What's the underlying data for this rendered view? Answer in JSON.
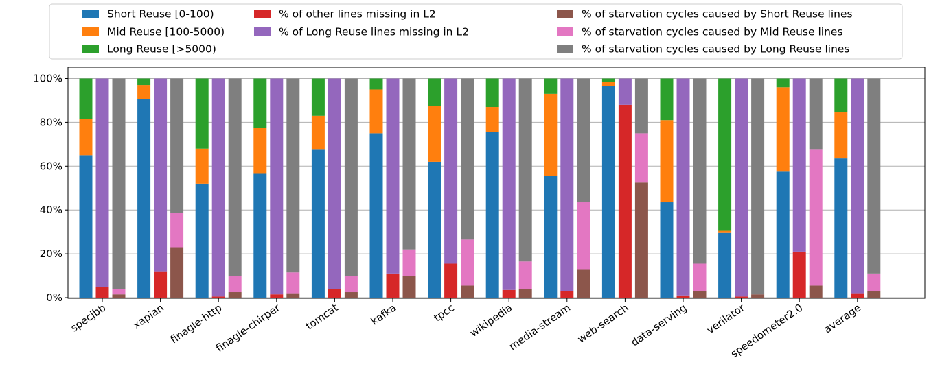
{
  "chart_data": {
    "type": "bar",
    "layout": "grouped-stacked",
    "categories": [
      "specjbb",
      "xapian",
      "finagle-http",
      "finagle-chirper",
      "tomcat",
      "kafka",
      "tpcc",
      "wikipedia",
      "media-stream",
      "web-search",
      "data-serving",
      "verilator",
      "speedometer2.0",
      "average"
    ],
    "ylim": [
      0,
      100
    ],
    "yticks": [
      0,
      20,
      40,
      60,
      80,
      100
    ],
    "ytick_labels": [
      "0%",
      "20%",
      "40%",
      "60%",
      "80%",
      "100%"
    ],
    "grid": true,
    "legend_position": "top",
    "groups": [
      {
        "stack": "reuse-distribution",
        "series": [
          {
            "name": "Short Reuse [0-100)",
            "color": "#1f77b4",
            "values": [
              65,
              90.5,
              52,
              56.5,
              67.5,
              75,
              62,
              75.5,
              55.5,
              96.5,
              43.5,
              29.5,
              57.5,
              63.5
            ]
          },
          {
            "name": "Mid Reuse [100-5000)",
            "color": "#ff7f0e",
            "values": [
              16.5,
              6.5,
              16,
              21,
              15.5,
              20,
              25.5,
              11.5,
              37.5,
              2,
              37.5,
              1,
              38.5,
              21
            ]
          },
          {
            "name": "Long Reuse [>5000)",
            "color": "#2ca02c",
            "values": [
              18.5,
              3,
              32,
              22.5,
              17,
              5,
              12.5,
              13,
              7,
              1.5,
              19,
              69.5,
              4,
              15.5
            ]
          }
        ]
      },
      {
        "stack": "l2-misses",
        "series": [
          {
            "name": "% of other lines missing in L2",
            "color": "#d62728",
            "values": [
              5,
              12,
              0.5,
              1.5,
              4,
              11,
              15.5,
              3.5,
              3,
              88,
              1,
              0.5,
              21,
              2
            ]
          },
          {
            "name": "% of Long Reuse lines missing in L2",
            "color": "#9467bd",
            "values": [
              95,
              88,
              99.5,
              98.5,
              96,
              89,
              84.5,
              96.5,
              97,
              12,
              99,
              99.5,
              79,
              98
            ]
          }
        ]
      },
      {
        "stack": "starvation-cycles",
        "series": [
          {
            "name": "% of starvation cycles caused by Short Reuse lines",
            "color": "#8c564b",
            "values": [
              1.5,
              23,
              2.5,
              2,
              2.5,
              10,
              5.5,
              4,
              13,
              52.5,
              3,
              1.5,
              5.5,
              3
            ]
          },
          {
            "name": "% of starvation cycles caused by Mid Reuse lines",
            "color": "#e377c2",
            "values": [
              2.5,
              15.5,
              7.5,
              9.5,
              7.5,
              12,
              21,
              12.5,
              30.5,
              22.5,
              12.5,
              0,
              62,
              8
            ]
          },
          {
            "name": "% of starvation cycles caused by Long Reuse lines",
            "color": "#7f7f7f",
            "values": [
              96,
              61.5,
              90,
              88.5,
              90,
              78,
              73.5,
              83.5,
              56.5,
              25,
              84.5,
              98.5,
              32.5,
              89
            ]
          }
        ]
      }
    ],
    "legend": [
      [
        "Short Reuse [0-100)",
        "Mid Reuse [100-5000)",
        "Long Reuse [>5000)"
      ],
      [
        "% of other lines missing in L2",
        "% of Long Reuse lines missing in L2"
      ],
      [
        "% of starvation cycles caused by Short Reuse lines",
        "% of starvation cycles caused by Mid Reuse lines",
        "% of starvation cycles caused by Long Reuse lines"
      ]
    ]
  }
}
